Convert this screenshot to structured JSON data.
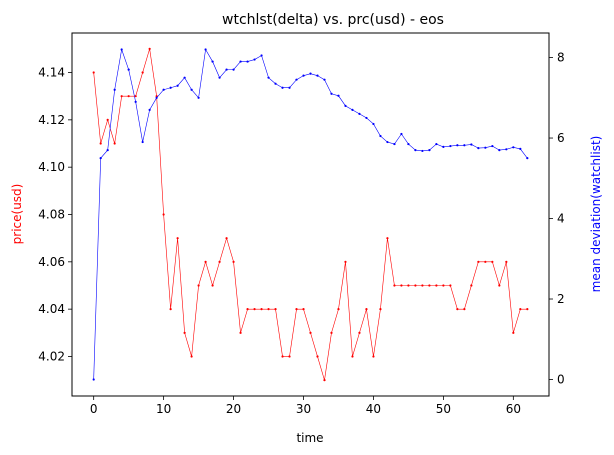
{
  "chart_data": {
    "type": "line",
    "title": "wtchlst(delta) vs. prc(usd) - eos",
    "xlabel": "time",
    "ylabel_left": "price(usd)",
    "ylabel_right": "mean deviation(watchlist)",
    "xlim": [
      -3.1,
      65.1
    ],
    "ylim_left": [
      4.0033,
      4.1567
    ],
    "ylim_right": [
      -0.41,
      8.61
    ],
    "x_ticks": [
      0,
      10,
      20,
      30,
      40,
      50,
      60
    ],
    "y_left_ticks": [
      4.02,
      4.04,
      4.06,
      4.08,
      4.1,
      4.12,
      4.14
    ],
    "y_left_tick_labels": [
      "4.02",
      "4.04",
      "4.06",
      "4.08",
      "4.10",
      "4.12",
      "4.14"
    ],
    "y_right_ticks": [
      0,
      2,
      4,
      6,
      8
    ],
    "grid": false,
    "legend": "none",
    "series": [
      {
        "axis": "left",
        "color": "#ff0000",
        "x": [
          0,
          1,
          2,
          3,
          4,
          5,
          6,
          7,
          8,
          9,
          10,
          11,
          12,
          13,
          14,
          15,
          16,
          17,
          18,
          19,
          20,
          21,
          22,
          23,
          24,
          25,
          26,
          27,
          28,
          29,
          30,
          31,
          32,
          33,
          34,
          35,
          36,
          37,
          38,
          39,
          40,
          41,
          42,
          43,
          44,
          45,
          46,
          47,
          48,
          49,
          50,
          51,
          52,
          53,
          54,
          55,
          56,
          57,
          58,
          59,
          60,
          61,
          62
        ],
        "values": [
          4.14,
          4.11,
          4.12,
          4.11,
          4.13,
          4.13,
          4.13,
          4.14,
          4.15,
          4.13,
          4.08,
          4.04,
          4.07,
          4.03,
          4.02,
          4.05,
          4.06,
          4.05,
          4.06,
          4.07,
          4.06,
          4.03,
          4.04,
          4.04,
          4.04,
          4.04,
          4.04,
          4.02,
          4.02,
          4.04,
          4.04,
          4.03,
          4.02,
          4.01,
          4.03,
          4.04,
          4.06,
          4.02,
          4.03,
          4.04,
          4.02,
          4.04,
          4.07,
          4.05,
          4.05,
          4.05,
          4.05,
          4.05,
          4.05,
          4.05,
          4.05,
          4.05,
          4.04,
          4.04,
          4.05,
          4.06,
          4.06,
          4.06,
          4.05,
          4.06,
          4.03,
          4.04,
          4.04
        ]
      },
      {
        "axis": "right",
        "color": "#0000ff",
        "x": [
          0,
          1,
          2,
          3,
          4,
          5,
          6,
          7,
          8,
          9,
          10,
          11,
          12,
          13,
          14,
          15,
          16,
          17,
          18,
          19,
          20,
          21,
          22,
          23,
          24,
          25,
          26,
          27,
          28,
          29,
          30,
          31,
          32,
          33,
          34,
          35,
          36,
          37,
          38,
          39,
          40,
          41,
          42,
          43,
          44,
          45,
          46,
          47,
          48,
          49,
          50,
          51,
          52,
          53,
          54,
          55,
          56,
          57,
          58,
          59,
          60,
          61,
          62
        ],
        "values": [
          0.0,
          5.5,
          5.7,
          7.2,
          8.2,
          7.7,
          6.9,
          5.9,
          6.7,
          7.0,
          7.2,
          7.25,
          7.3,
          7.5,
          7.2,
          7.0,
          8.2,
          7.9,
          7.5,
          7.7,
          7.7,
          7.9,
          7.9,
          7.95,
          8.05,
          7.5,
          7.35,
          7.25,
          7.25,
          7.45,
          7.55,
          7.6,
          7.55,
          7.45,
          7.1,
          7.05,
          6.8,
          6.7,
          6.6,
          6.5,
          6.35,
          6.05,
          5.9,
          5.85,
          6.1,
          5.85,
          5.7,
          5.68,
          5.7,
          5.85,
          5.78,
          5.8,
          5.82,
          5.82,
          5.84,
          5.75,
          5.76,
          5.8,
          5.7,
          5.72,
          5.77,
          5.73,
          5.5
        ]
      }
    ]
  }
}
